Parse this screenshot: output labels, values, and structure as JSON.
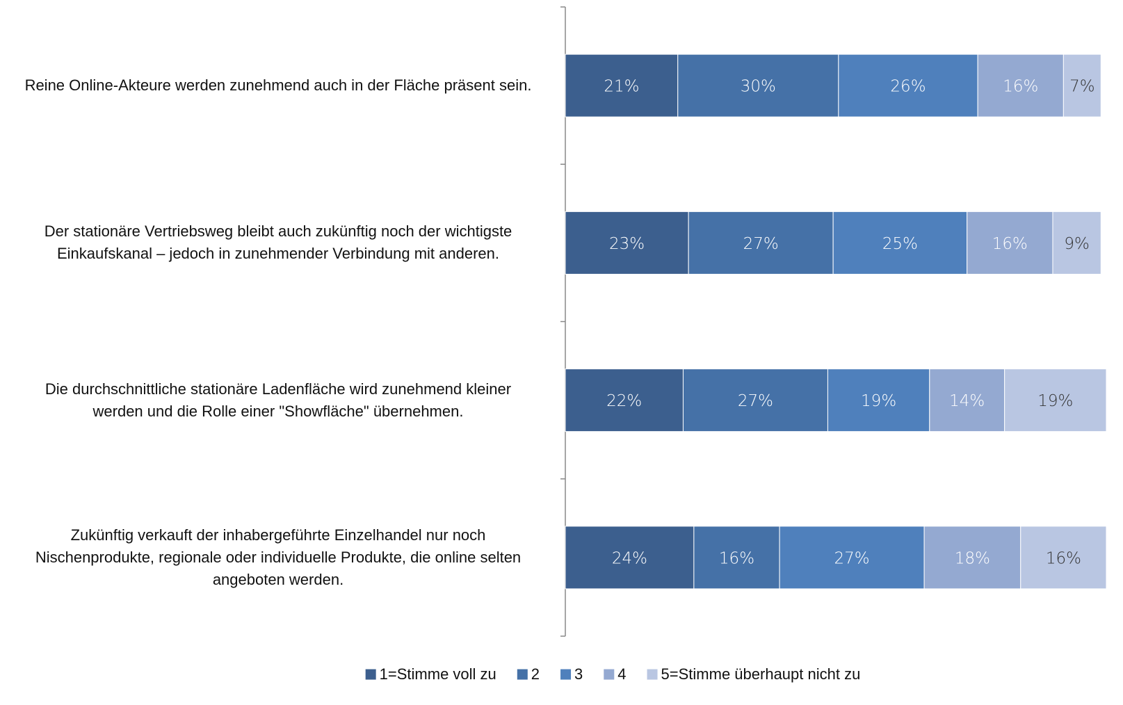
{
  "chart_data": {
    "type": "stacked-bar-horizontal",
    "categories": [
      "Reine Online-Akteure werden zunehmend auch in der Fläche präsent sein.",
      "Der stationäre Vertriebsweg bleibt auch zukünftig noch der wichtigste\nEinkaufskanal – jedoch in zunehmender Verbindung mit anderen.",
      "Die durchschnittliche stationäre Ladenfläche wird zunehmend kleiner\nwerden und die Rolle einer \"Showfläche\" übernehmen.",
      "Zukünftig verkauft der inhabergeführte Einzelhandel nur noch\nNischenprodukte, regionale oder individuelle Produkte, die online selten\nangeboten werden."
    ],
    "series": [
      {
        "name": "1=Stimme voll zu",
        "color": "#3c5f8e",
        "label_color": "#ffffff",
        "values": [
          21,
          23,
          22,
          24
        ],
        "value_labels": [
          "21%",
          "23%",
          "22%",
          "24%"
        ]
      },
      {
        "name": "2",
        "color": "#4571a7",
        "label_color": "#ffffff",
        "values": [
          30,
          27,
          27,
          16
        ],
        "value_labels": [
          "30%",
          "27%",
          "27%",
          "16%"
        ]
      },
      {
        "name": "3",
        "color": "#4f80bc",
        "label_color": "#ffffff",
        "values": [
          26,
          25,
          19,
          27
        ],
        "value_labels": [
          "26%",
          "25%",
          "19%",
          "27%"
        ]
      },
      {
        "name": "4",
        "color": "#94a9d1",
        "label_color": "#ffffff",
        "values": [
          16,
          16,
          14,
          18
        ],
        "value_labels": [
          "16%",
          "16%",
          "14%",
          "18%"
        ]
      },
      {
        "name": "5=Stimme überhaupt nicht zu",
        "color": "#b9c6e2",
        "label_color": "#333333",
        "values": [
          7,
          9,
          19,
          16
        ],
        "value_labels": [
          "7%",
          "9%",
          "19%",
          "16%"
        ]
      }
    ],
    "legend": "bottom"
  }
}
